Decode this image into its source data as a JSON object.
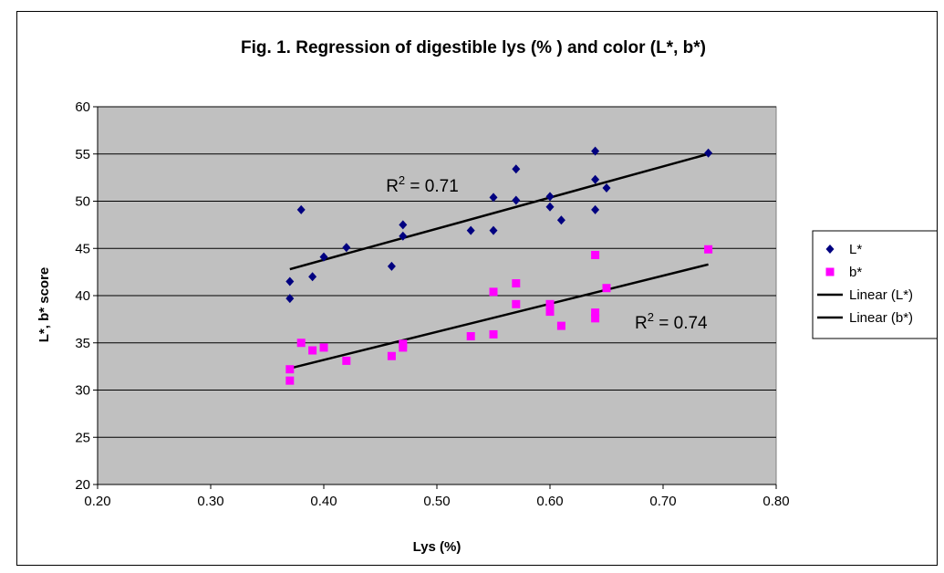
{
  "chart_data": {
    "type": "scatter",
    "title": "Fig. 1.  Regression of digestible lys (% ) and color (L*, b*)",
    "xlabel": "Lys (%)",
    "ylabel": "L*, b* score",
    "xlim": [
      0.2,
      0.8
    ],
    "ylim": [
      20,
      60
    ],
    "xticks": [
      "0.20",
      "0.30",
      "0.40",
      "0.50",
      "0.60",
      "0.70",
      "0.80"
    ],
    "yticks": [
      "20",
      "25",
      "30",
      "35",
      "40",
      "45",
      "50",
      "55",
      "60"
    ],
    "grid": "horizontal",
    "legend_position": "right",
    "plot_background": "#c0c0c0",
    "series": [
      {
        "name": "L*",
        "marker": "diamond",
        "color": "#000080",
        "points": [
          [
            0.37,
            41.5
          ],
          [
            0.37,
            39.7
          ],
          [
            0.38,
            49.1
          ],
          [
            0.39,
            42.0
          ],
          [
            0.4,
            44.1
          ],
          [
            0.42,
            45.1
          ],
          [
            0.46,
            43.1
          ],
          [
            0.47,
            47.5
          ],
          [
            0.47,
            46.3
          ],
          [
            0.53,
            46.9
          ],
          [
            0.55,
            50.4
          ],
          [
            0.55,
            46.9
          ],
          [
            0.57,
            53.4
          ],
          [
            0.57,
            50.1
          ],
          [
            0.6,
            50.5
          ],
          [
            0.6,
            49.4
          ],
          [
            0.61,
            48.0
          ],
          [
            0.64,
            55.3
          ],
          [
            0.64,
            52.3
          ],
          [
            0.64,
            49.1
          ],
          [
            0.65,
            51.4
          ],
          [
            0.74,
            55.1
          ]
        ]
      },
      {
        "name": "b*",
        "marker": "square",
        "color": "#ff00ff",
        "points": [
          [
            0.37,
            32.2
          ],
          [
            0.37,
            31.0
          ],
          [
            0.38,
            35.0
          ],
          [
            0.39,
            34.2
          ],
          [
            0.4,
            34.5
          ],
          [
            0.42,
            33.1
          ],
          [
            0.46,
            33.6
          ],
          [
            0.47,
            34.9
          ],
          [
            0.47,
            34.5
          ],
          [
            0.53,
            35.7
          ],
          [
            0.55,
            40.4
          ],
          [
            0.55,
            35.9
          ],
          [
            0.57,
            41.3
          ],
          [
            0.57,
            39.1
          ],
          [
            0.6,
            39.1
          ],
          [
            0.6,
            38.3
          ],
          [
            0.61,
            36.8
          ],
          [
            0.64,
            44.3
          ],
          [
            0.64,
            38.2
          ],
          [
            0.64,
            37.6
          ],
          [
            0.65,
            40.8
          ],
          [
            0.74,
            44.9
          ]
        ]
      },
      {
        "name": "Linear (L*)",
        "type": "line",
        "color": "#000000",
        "points": [
          [
            0.37,
            42.8
          ],
          [
            0.74,
            55.0
          ]
        ]
      },
      {
        "name": "Linear (b*)",
        "type": "line",
        "color": "#000000",
        "points": [
          [
            0.37,
            32.3
          ],
          [
            0.74,
            43.3
          ]
        ]
      }
    ],
    "annotations": [
      {
        "text_base": "R",
        "text_sup": "2",
        "text_rest": " = 0.71",
        "x": 0.455,
        "y": 51.0
      },
      {
        "text_base": "R",
        "text_sup": "2",
        "text_rest": " = 0.74",
        "x": 0.675,
        "y": 36.5
      }
    ]
  }
}
